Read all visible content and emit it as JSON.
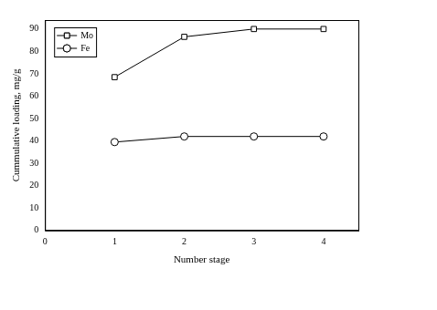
{
  "chart_data": {
    "type": "line",
    "x_label": "Number stage",
    "y_label": "Cummulative loading, mg/g",
    "x": [
      1,
      2,
      3,
      4
    ],
    "series": [
      {
        "name": "Mo",
        "color": "#000000",
        "marker": "square",
        "line_style": "solid",
        "values": [
          68.5,
          86.5,
          90,
          90
        ]
      },
      {
        "name": "Fe",
        "color": "#000000",
        "marker": "circle",
        "line_style": "solid",
        "values": [
          39.5,
          42,
          42,
          42
        ]
      }
    ],
    "xlim": [
      0,
      4.5
    ],
    "xticks": [
      0,
      1,
      2,
      3,
      4
    ],
    "ylim": [
      0,
      94
    ],
    "yticks": [
      0,
      10,
      20,
      30,
      40,
      50,
      60,
      70,
      80,
      90
    ],
    "grid": false,
    "legend": "upper left"
  }
}
